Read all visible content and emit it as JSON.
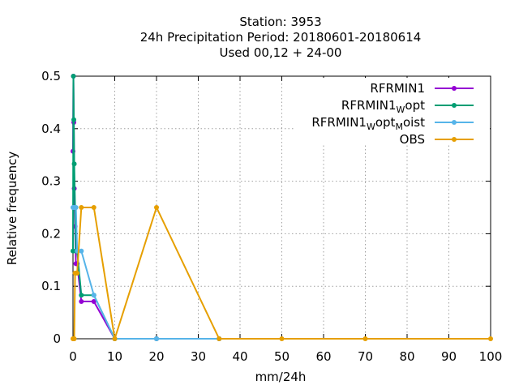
{
  "chart_data": {
    "type": "line",
    "title_lines": [
      "Station:     3953",
      "24h Precipitation  Period: 20180601-20180614",
      "Used  00,12  + 24-00"
    ],
    "xlabel": "mm/24h",
    "ylabel": "Relative frequency",
    "xlim": [
      0,
      100
    ],
    "ylim": [
      0,
      0.5
    ],
    "x_ticks": [
      0,
      10,
      20,
      30,
      40,
      50,
      60,
      70,
      80,
      90,
      100
    ],
    "y_ticks": [
      0,
      0.1,
      0.2,
      0.3,
      0.4,
      0.5
    ],
    "y_tick_labels": [
      "0",
      "0.1",
      "0.2",
      "0.3",
      "0.4",
      "0.5"
    ],
    "grid": true,
    "legend_position": "top-right",
    "series": [
      {
        "name": "RFRMIN1",
        "name_parts": [],
        "color": "#9400d3",
        "x": [
          0,
          0.1,
          0.2,
          0.3,
          0.5,
          0.7,
          1,
          2,
          5,
          10,
          20,
          35
        ],
        "y": [
          0.357,
          0.5,
          0.412,
          0.286,
          0.214,
          0.143,
          0.143,
          0.071,
          0.071,
          0,
          0,
          0
        ]
      },
      {
        "name": "RFRMIN1",
        "name_parts": [
          {
            "t": "RFRMIN1",
            "sub": false
          },
          {
            "t": "W",
            "sub": true
          },
          {
            "t": "opt",
            "sub": false
          }
        ],
        "color": "#009e73",
        "x": [
          0,
          0.1,
          0.2,
          0.3,
          0.5,
          0.7,
          1,
          2,
          5,
          10,
          20,
          35
        ],
        "y": [
          0.167,
          0.5,
          0.417,
          0.333,
          0.25,
          0.167,
          0.167,
          0.083,
          0.083,
          0,
          0,
          0
        ]
      },
      {
        "name": "RFRMIN1",
        "name_parts": [
          {
            "t": "RFRMIN1",
            "sub": false
          },
          {
            "t": "W",
            "sub": true
          },
          {
            "t": "opt",
            "sub": false
          },
          {
            "t": "M",
            "sub": true
          },
          {
            "t": "oist",
            "sub": false
          }
        ],
        "color": "#56b4e9",
        "x": [
          0,
          0.1,
          0.2,
          0.3,
          0.5,
          0.7,
          1,
          2,
          5,
          10,
          20,
          35
        ],
        "y": [
          0.25,
          0.25,
          0.25,
          0.25,
          0.25,
          0.25,
          0.167,
          0.167,
          0.083,
          0,
          0,
          0
        ]
      },
      {
        "name": "OBS",
        "name_parts": [],
        "color": "#e69f00",
        "x": [
          0,
          0.1,
          0.2,
          0.3,
          0.5,
          0.7,
          1,
          2,
          5,
          10,
          20,
          35,
          50,
          70,
          100
        ],
        "y": [
          0,
          0,
          0,
          0,
          0.125,
          0.125,
          0.125,
          0.25,
          0.25,
          0,
          0.25,
          0,
          0,
          0,
          0
        ]
      }
    ]
  }
}
